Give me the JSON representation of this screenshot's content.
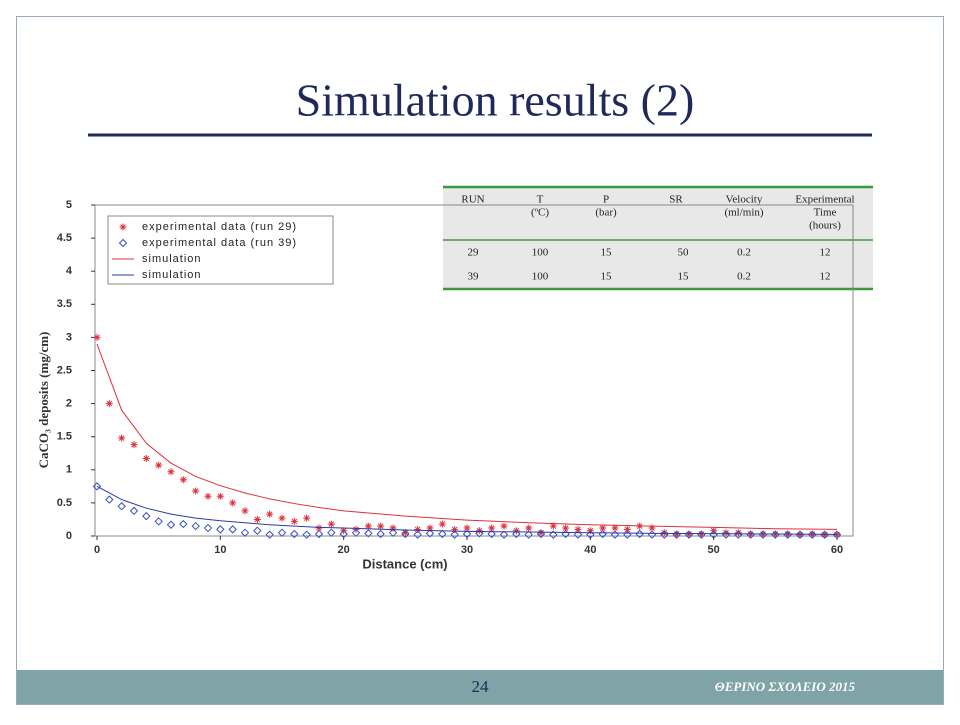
{
  "slide": {
    "title": "Simulation results (2)",
    "page_number": "24",
    "footer": "ΘΕΡΙΝΟ ΣΧΟΛΕΙΟ 2015"
  },
  "table": {
    "header": [
      [
        "RUN"
      ],
      [
        "T",
        "(ºC)"
      ],
      [
        "P",
        "(bar)"
      ],
      [
        "SR"
      ],
      [
        "Velocity",
        "(ml/min)"
      ],
      [
        "Experimental",
        "Time",
        "(hours)"
      ]
    ],
    "rows": [
      [
        29,
        100,
        15,
        50,
        0.2,
        12
      ],
      [
        39,
        100,
        15,
        15,
        0.2,
        12
      ]
    ]
  },
  "chart_data": {
    "type": "scatter",
    "x_label": "Distance (cm)",
    "y_label": "CaCO₃ deposits (mg/cm)",
    "xlim": [
      0,
      60
    ],
    "xticks": [
      0,
      10,
      20,
      30,
      40,
      50,
      60
    ],
    "ylim": [
      0,
      5
    ],
    "yticks": [
      0,
      0.5,
      1,
      1.5,
      2,
      2.5,
      3,
      3.5,
      4,
      4.5,
      5
    ],
    "series": [
      {
        "name": "experimental data (run 29)",
        "mode": "markers",
        "marker": "asterisk",
        "color": "#e0303a",
        "x": [
          0,
          1,
          2,
          3,
          4,
          5,
          6,
          7,
          8,
          9,
          10,
          11,
          12,
          13,
          14,
          15,
          16,
          17,
          18,
          19,
          20,
          21,
          22,
          23,
          24,
          25,
          26,
          27,
          28,
          29,
          30,
          31,
          32,
          33,
          34,
          35,
          36,
          37,
          38,
          39,
          40,
          41,
          42,
          43,
          44,
          45,
          46,
          47,
          48,
          49,
          50,
          51,
          52,
          53,
          54,
          55,
          56,
          57,
          58,
          59,
          60
        ],
        "values": [
          3.0,
          2.0,
          1.48,
          1.38,
          1.17,
          1.07,
          0.97,
          0.85,
          0.68,
          0.6,
          0.6,
          0.5,
          0.38,
          0.25,
          0.33,
          0.27,
          0.22,
          0.27,
          0.12,
          0.18,
          0.08,
          0.1,
          0.15,
          0.15,
          0.12,
          0.05,
          0.1,
          0.12,
          0.18,
          0.1,
          0.12,
          0.08,
          0.12,
          0.15,
          0.08,
          0.12,
          0.05,
          0.15,
          0.12,
          0.1,
          0.08,
          0.12,
          0.12,
          0.1,
          0.15,
          0.12,
          0.05,
          0.03,
          0.03,
          0.03,
          0.08,
          0.05,
          0.05,
          0.03,
          0.03,
          0.03,
          0.03,
          0.02,
          0.03,
          0.02,
          0.02
        ]
      },
      {
        "name": "experimental data (run 39)",
        "mode": "markers",
        "marker": "diamond",
        "color": "#3a4fc0",
        "x": [
          0,
          1,
          2,
          3,
          4,
          5,
          6,
          7,
          8,
          9,
          10,
          11,
          12,
          13,
          14,
          15,
          16,
          17,
          18,
          19,
          20,
          21,
          22,
          23,
          24,
          25,
          26,
          27,
          28,
          29,
          30,
          31,
          32,
          33,
          34,
          35,
          36,
          37,
          38,
          39,
          40,
          41,
          42,
          43,
          44,
          45,
          46,
          47,
          48,
          49,
          50,
          51,
          52,
          53,
          54,
          55,
          56,
          57,
          58,
          59,
          60
        ],
        "values": [
          0.75,
          0.55,
          0.45,
          0.38,
          0.3,
          0.22,
          0.17,
          0.18,
          0.15,
          0.12,
          0.1,
          0.1,
          0.05,
          0.08,
          0.02,
          0.05,
          0.03,
          0.02,
          0.03,
          0.05,
          0.03,
          0.05,
          0.04,
          0.03,
          0.05,
          0.03,
          0.02,
          0.04,
          0.03,
          0.02,
          0.03,
          0.04,
          0.03,
          0.02,
          0.03,
          0.02,
          0.03,
          0.02,
          0.03,
          0.02,
          0.02,
          0.03,
          0.02,
          0.02,
          0.03,
          0.02,
          0.02,
          0.02,
          0.02,
          0.02,
          0.02,
          0.02,
          0.02,
          0.02,
          0.02,
          0.02,
          0.02,
          0.02,
          0.02,
          0.02,
          0.02
        ]
      },
      {
        "name": "simulation",
        "mode": "line",
        "color": "#e0303a",
        "x": [
          0,
          2,
          4,
          6,
          8,
          10,
          12,
          14,
          16,
          18,
          20,
          25,
          30,
          35,
          40,
          45,
          50,
          55,
          60
        ],
        "values": [
          2.9,
          1.9,
          1.4,
          1.1,
          0.9,
          0.76,
          0.65,
          0.56,
          0.49,
          0.43,
          0.38,
          0.3,
          0.24,
          0.2,
          0.17,
          0.15,
          0.13,
          0.11,
          0.1
        ]
      },
      {
        "name": "simulation",
        "mode": "line",
        "color": "#2a3aa8",
        "x": [
          0,
          2,
          4,
          6,
          8,
          10,
          12,
          14,
          16,
          18,
          20,
          25,
          30,
          35,
          40,
          45,
          50,
          55,
          60
        ],
        "values": [
          0.75,
          0.55,
          0.42,
          0.33,
          0.27,
          0.23,
          0.2,
          0.17,
          0.15,
          0.13,
          0.12,
          0.09,
          0.07,
          0.06,
          0.05,
          0.04,
          0.035,
          0.03,
          0.025
        ]
      }
    ]
  }
}
